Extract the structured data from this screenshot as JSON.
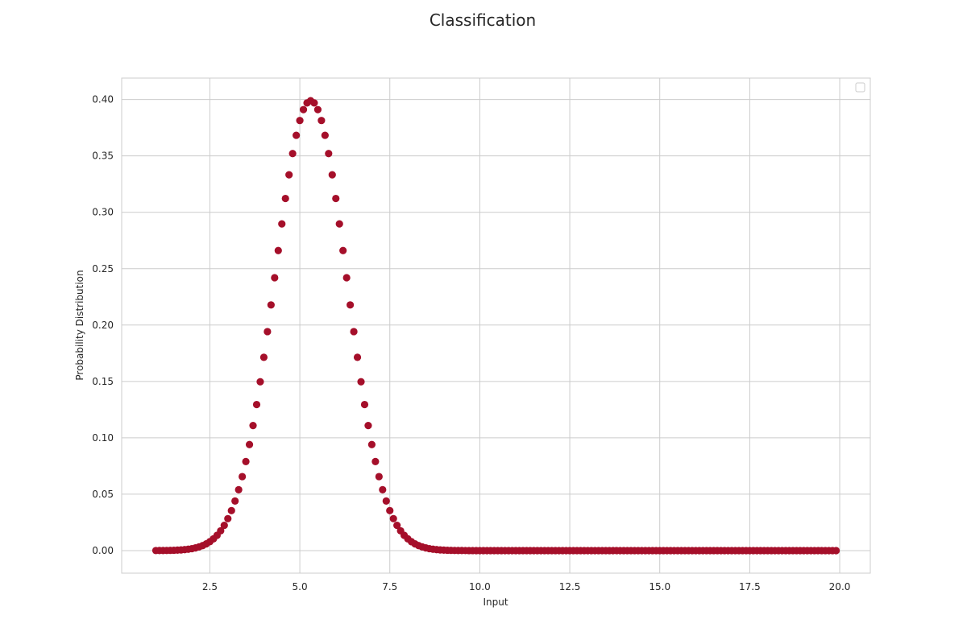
{
  "chart_data": {
    "type": "scatter",
    "title": "Classification",
    "xlabel": "Input",
    "ylabel": "Probability Distribution",
    "xlim": [
      0.05,
      20.85
    ],
    "ylim": [
      -0.02,
      0.419
    ],
    "xticks": [
      2.5,
      5.0,
      7.5,
      10.0,
      12.5,
      15.0,
      17.5,
      20.0
    ],
    "xtick_labels": [
      "2.5",
      "5.0",
      "7.5",
      "10.0",
      "12.5",
      "15.0",
      "17.5",
      "20.0"
    ],
    "yticks": [
      0.0,
      0.05,
      0.1,
      0.15,
      0.2,
      0.25,
      0.3,
      0.35,
      0.4
    ],
    "ytick_labels": [
      "0.00",
      "0.05",
      "0.10",
      "0.15",
      "0.20",
      "0.25",
      "0.30",
      "0.35",
      "0.40"
    ],
    "grid": true,
    "legend": "top-right (empty)",
    "marker_color": "#a50f2a",
    "series": [
      {
        "x_start": 1.0,
        "x_end": 19.9,
        "x_step": 0.1,
        "distribution": "normal",
        "mean": 5.3,
        "std": 1.0,
        "peak": 0.399
      }
    ]
  }
}
